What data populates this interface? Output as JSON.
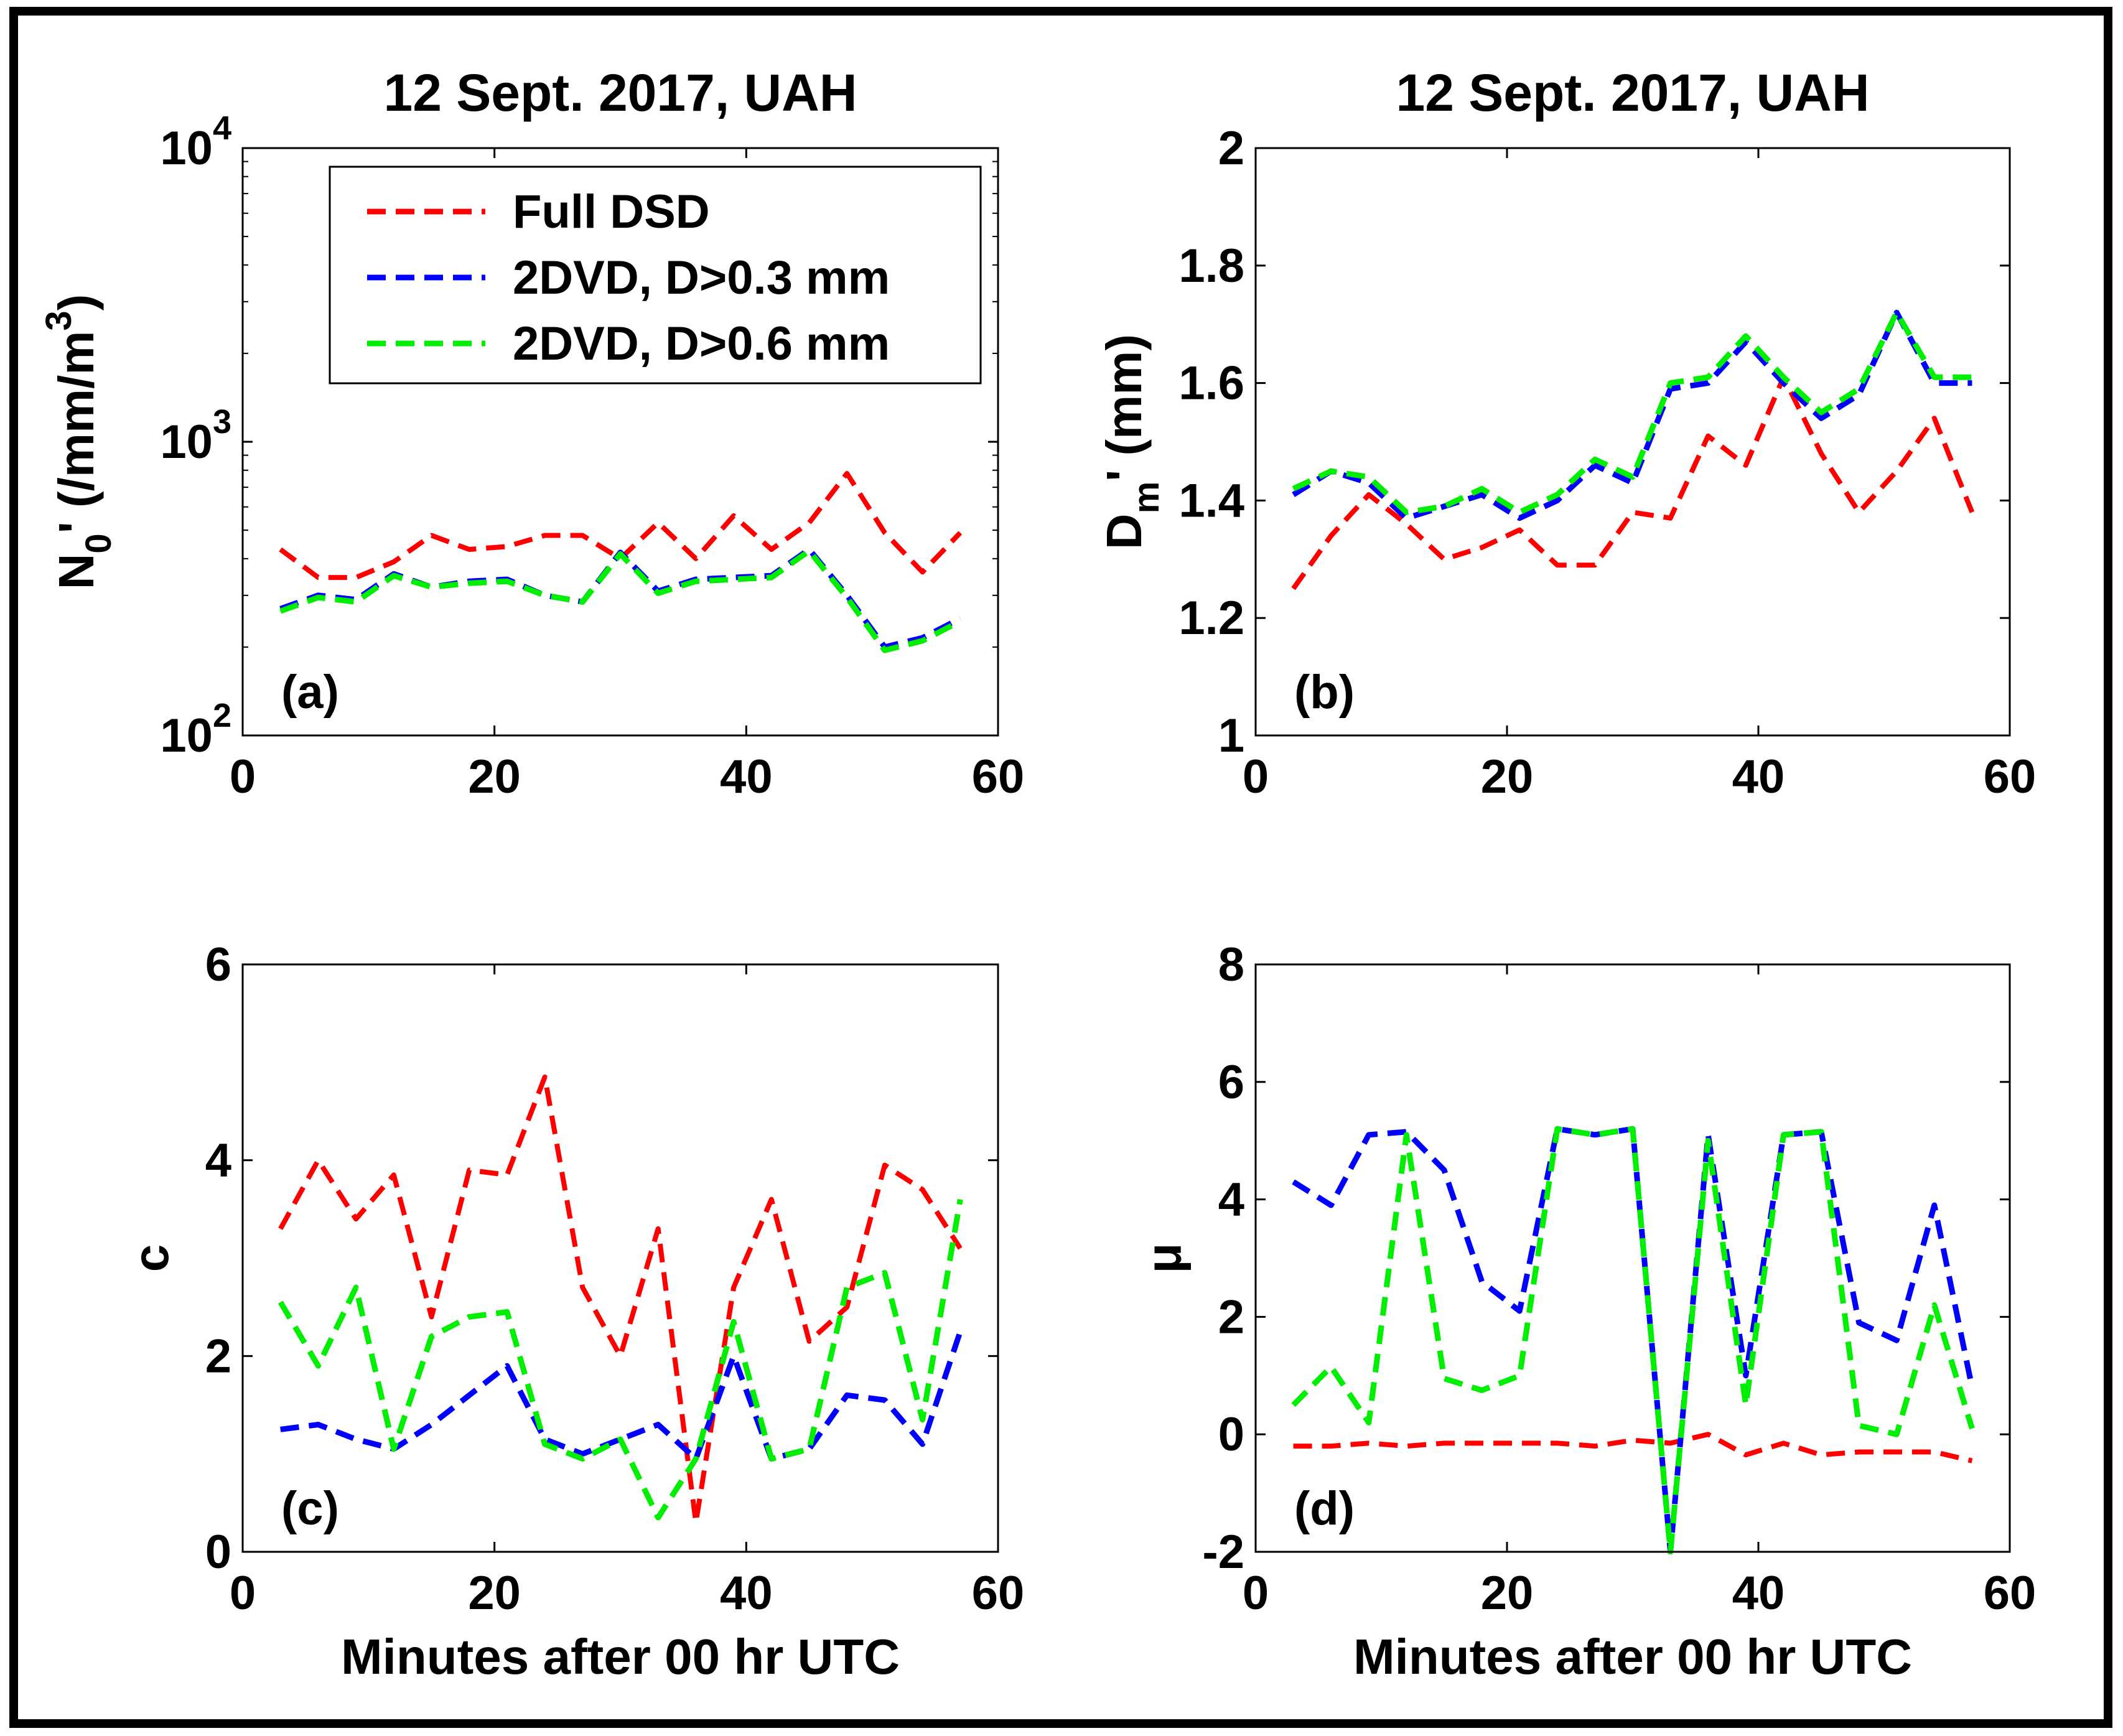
{
  "figure": {
    "frame": "outer-border"
  },
  "legend": {
    "entries": [
      {
        "label": "Full DSD",
        "color": "#ff0000"
      },
      {
        "label": "2DVD, D>0.3 mm",
        "color": "#0000ff"
      },
      {
        "label": "2DVD, D>0.6 mm",
        "color": "#00ee00"
      }
    ]
  },
  "chart_data": [
    {
      "id": "a",
      "type": "line",
      "panel_label": "(a)",
      "title": "12 Sept. 2017, UAH",
      "xlabel": "",
      "ylabel": "N0' (/mm/m3)",
      "ylabel_parts": {
        "base": "N",
        "sub": "0",
        "prime": "'",
        "unit_open": " (/mm/m",
        "sup": "3",
        "unit_close": ")"
      },
      "yscale": "log",
      "xlim": [
        0,
        60
      ],
      "ylim": [
        100,
        10000
      ],
      "xticks": [
        0,
        20,
        40,
        60
      ],
      "xtick_labels": [
        "0",
        "20",
        "40",
        "60"
      ],
      "yticks": [
        100,
        1000,
        10000
      ],
      "ytick_labels": [
        {
          "base": "10",
          "exp": "2"
        },
        {
          "base": "10",
          "exp": "3"
        },
        {
          "base": "10",
          "exp": "4"
        }
      ],
      "x": [
        3,
        6,
        9,
        12,
        15,
        18,
        21,
        24,
        27,
        30,
        33,
        36,
        39,
        42,
        45,
        48,
        51,
        54,
        57
      ],
      "series": [
        {
          "name": "Full DSD",
          "color": "#ff0000",
          "values": [
            430,
            345,
            345,
            390,
            480,
            430,
            440,
            480,
            480,
            400,
            530,
            400,
            560,
            430,
            530,
            780,
            490,
            360,
            490
          ]
        },
        {
          "name": "2DVD, D>0.3 mm",
          "color": "#0000ff",
          "values": [
            270,
            300,
            290,
            355,
            320,
            335,
            340,
            300,
            285,
            420,
            310,
            340,
            345,
            350,
            430,
            300,
            200,
            215,
            250
          ]
        },
        {
          "name": "2DVD, D>0.6 mm",
          "color": "#00ee00",
          "values": [
            265,
            295,
            285,
            350,
            320,
            330,
            335,
            300,
            285,
            415,
            305,
            335,
            340,
            345,
            425,
            295,
            195,
            210,
            245
          ]
        }
      ]
    },
    {
      "id": "b",
      "type": "line",
      "panel_label": "(b)",
      "title": "12 Sept. 2017, UAH",
      "xlabel": "",
      "ylabel": "Dm' (mm)",
      "ylabel_parts": {
        "base": "D",
        "sub": "m",
        "prime": "'",
        "unit_open": " (mm)",
        "sup": "",
        "unit_close": ""
      },
      "yscale": "linear",
      "xlim": [
        0,
        60
      ],
      "ylim": [
        1,
        2
      ],
      "xticks": [
        0,
        20,
        40,
        60
      ],
      "xtick_labels": [
        "0",
        "20",
        "40",
        "60"
      ],
      "yticks": [
        1,
        1.2,
        1.4,
        1.6,
        1.8,
        2
      ],
      "ytick_labels": [
        "1",
        "1.2",
        "1.4",
        "1.6",
        "1.8",
        "2"
      ],
      "x": [
        3,
        6,
        9,
        12,
        15,
        18,
        21,
        24,
        27,
        30,
        33,
        36,
        39,
        42,
        45,
        48,
        51,
        54,
        57
      ],
      "series": [
        {
          "name": "Full DSD",
          "color": "#ff0000",
          "values": [
            1.25,
            1.34,
            1.41,
            1.36,
            1.3,
            1.32,
            1.35,
            1.29,
            1.29,
            1.38,
            1.37,
            1.51,
            1.46,
            1.61,
            1.48,
            1.38,
            1.45,
            1.54,
            1.38
          ]
        },
        {
          "name": "2DVD, D>0.3 mm",
          "color": "#0000ff",
          "values": [
            1.41,
            1.45,
            1.43,
            1.37,
            1.39,
            1.41,
            1.37,
            1.4,
            1.46,
            1.43,
            1.59,
            1.6,
            1.67,
            1.6,
            1.54,
            1.58,
            1.72,
            1.6,
            1.6
          ]
        },
        {
          "name": "2DVD, D>0.6 mm",
          "color": "#00ee00",
          "values": [
            1.42,
            1.45,
            1.44,
            1.38,
            1.39,
            1.42,
            1.38,
            1.41,
            1.47,
            1.44,
            1.6,
            1.61,
            1.68,
            1.61,
            1.55,
            1.59,
            1.72,
            1.61,
            1.61
          ]
        }
      ]
    },
    {
      "id": "c",
      "type": "line",
      "panel_label": "(c)",
      "title": "",
      "xlabel": "Minutes after 00 hr UTC",
      "ylabel": "c",
      "ylabel_parts": {
        "base": "c",
        "sub": "",
        "prime": "",
        "unit_open": "",
        "sup": "",
        "unit_close": ""
      },
      "yscale": "linear",
      "xlim": [
        0,
        60
      ],
      "ylim": [
        0,
        6
      ],
      "xticks": [
        0,
        20,
        40,
        60
      ],
      "xtick_labels": [
        "0",
        "20",
        "40",
        "60"
      ],
      "yticks": [
        0,
        2,
        4,
        6
      ],
      "ytick_labels": [
        "0",
        "2",
        "4",
        "6"
      ],
      "x": [
        3,
        6,
        9,
        12,
        15,
        18,
        21,
        24,
        27,
        30,
        33,
        36,
        39,
        42,
        45,
        48,
        51,
        54,
        57
      ],
      "series": [
        {
          "name": "Full DSD",
          "color": "#ff0000",
          "values": [
            3.3,
            4.0,
            3.4,
            3.85,
            2.4,
            3.9,
            3.85,
            4.85,
            2.7,
            2.0,
            3.3,
            0.3,
            2.7,
            3.6,
            2.15,
            2.5,
            3.95,
            3.7,
            3.1
          ]
        },
        {
          "name": "2DVD, D>0.3 mm",
          "color": "#0000ff",
          "values": [
            1.25,
            1.3,
            1.15,
            1.05,
            1.3,
            1.6,
            1.9,
            1.15,
            1.0,
            1.15,
            1.3,
            0.95,
            2.0,
            0.95,
            1.05,
            1.6,
            1.55,
            1.1,
            2.25
          ]
        },
        {
          "name": "2DVD, D>0.6 mm",
          "color": "#00ee00",
          "values": [
            2.55,
            1.9,
            2.7,
            1.05,
            2.2,
            2.4,
            2.45,
            1.1,
            0.95,
            1.15,
            0.35,
            0.95,
            2.35,
            0.95,
            1.05,
            2.7,
            2.85,
            1.35,
            3.6
          ]
        }
      ]
    },
    {
      "id": "d",
      "type": "line",
      "panel_label": "(d)",
      "title": "",
      "xlabel": "Minutes after 00 hr UTC",
      "ylabel": "μ",
      "ylabel_parts": {
        "base": "μ",
        "sub": "",
        "prime": "",
        "unit_open": "",
        "sup": "",
        "unit_close": ""
      },
      "yscale": "linear",
      "xlim": [
        0,
        60
      ],
      "ylim": [
        -2,
        8
      ],
      "xticks": [
        0,
        20,
        40,
        60
      ],
      "xtick_labels": [
        "0",
        "20",
        "40",
        "60"
      ],
      "yticks": [
        -2,
        0,
        2,
        4,
        6,
        8
      ],
      "ytick_labels": [
        "-2",
        "0",
        "2",
        "4",
        "6",
        "8"
      ],
      "x": [
        3,
        6,
        9,
        12,
        15,
        18,
        21,
        24,
        27,
        30,
        33,
        36,
        39,
        42,
        45,
        48,
        51,
        54,
        57
      ],
      "series": [
        {
          "name": "Full DSD",
          "color": "#ff0000",
          "values": [
            -0.2,
            -0.2,
            -0.15,
            -0.2,
            -0.15,
            -0.15,
            -0.15,
            -0.15,
            -0.2,
            -0.1,
            -0.15,
            0.0,
            -0.35,
            -0.15,
            -0.35,
            -0.3,
            -0.3,
            -0.3,
            -0.45
          ]
        },
        {
          "name": "2DVD, D>0.3 mm",
          "color": "#0000ff",
          "values": [
            4.3,
            3.9,
            5.1,
            5.15,
            4.5,
            2.6,
            2.1,
            5.2,
            5.1,
            5.2,
            -2.0,
            5.1,
            1.0,
            5.1,
            5.15,
            1.9,
            1.6,
            3.9,
            0.8
          ]
        },
        {
          "name": "2DVD, D>0.6 mm",
          "color": "#00ee00",
          "values": [
            0.5,
            1.15,
            0.2,
            5.1,
            0.95,
            0.75,
            1.0,
            5.2,
            5.1,
            5.2,
            -2.0,
            5.0,
            0.5,
            5.1,
            5.15,
            0.15,
            0.0,
            2.2,
            0.1
          ]
        }
      ]
    }
  ]
}
